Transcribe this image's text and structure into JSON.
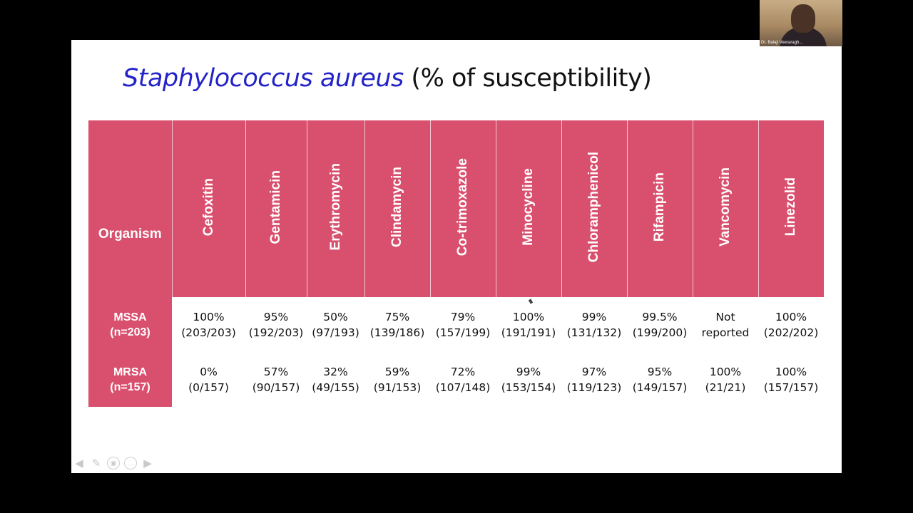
{
  "title": {
    "organism": "Staphylococcus aureus",
    "suffix": " (% of susceptibility)"
  },
  "table": {
    "corner": "Organism",
    "columns": [
      "Cefoxitin",
      "Gentamicin",
      "Erythromycin",
      "Clindamycin",
      "Co-trimoxazole",
      "Minocycline",
      "Chloramphenicol",
      "Rifampicin",
      "Vancomycin",
      "Linezolid"
    ],
    "rows": [
      {
        "label1": "MSSA",
        "label2": "(n=203)",
        "cells": [
          [
            "100%",
            "(203/203)"
          ],
          [
            "95%",
            "(192/203)"
          ],
          [
            "50%",
            "(97/193)"
          ],
          [
            "75%",
            "(139/186)"
          ],
          [
            "79%",
            "(157/199)"
          ],
          [
            "100%",
            "(191/191)"
          ],
          [
            "99%",
            "(131/132)"
          ],
          [
            "99.5%",
            "(199/200)"
          ],
          [
            "Not",
            "reported"
          ],
          [
            "100%",
            "(202/202)"
          ]
        ]
      },
      {
        "label1": "MRSA",
        "label2": "(n=157)",
        "cells": [
          [
            "0%",
            "(0/157)"
          ],
          [
            "57%",
            "(90/157)"
          ],
          [
            "32%",
            "(49/155)"
          ],
          [
            "59%",
            "(91/153)"
          ],
          [
            "72%",
            "(107/148)"
          ],
          [
            "99%",
            "(153/154)"
          ],
          [
            "97%",
            "(119/123)"
          ],
          [
            "95%",
            "(149/157)"
          ],
          [
            "100%",
            "(21/21)"
          ],
          [
            "100%",
            "(157/157)"
          ]
        ]
      }
    ]
  },
  "video": {
    "participant_name": "Dr. Balaji Veeraragh..."
  },
  "nav": {
    "prev_icon": "left-arrow-icon",
    "pen_icon": "pen-icon",
    "slides_icon": "slides-icon",
    "more_icon": "more-icon",
    "next_icon": "right-arrow-icon"
  },
  "colors": {
    "header_bg": "#d9506e",
    "title_accent": "#2323c8"
  }
}
